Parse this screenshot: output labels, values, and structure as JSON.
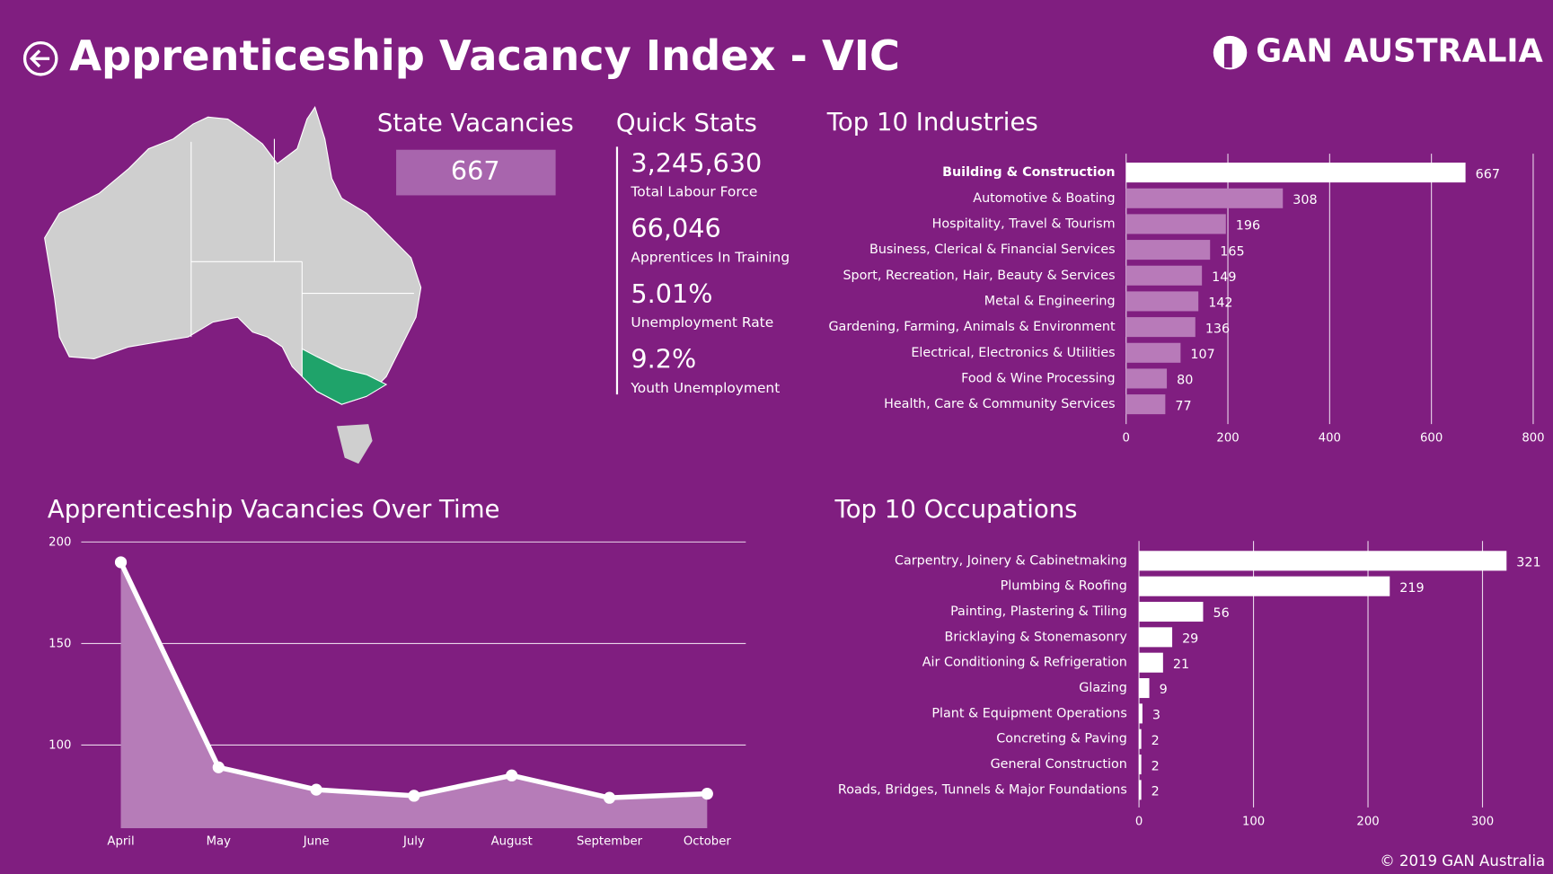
{
  "header": {
    "title": "Apprenticeship Vacancy Index - VIC",
    "logo": "GAN AUSTRALIA"
  },
  "state_vacancies": {
    "label": "State Vacancies",
    "value": 667
  },
  "quick_stats": {
    "title": "Quick Stats",
    "items": [
      {
        "value": "3,245,630",
        "label": "Total Labour Force"
      },
      {
        "value": "66,046",
        "label": "Apprentices In Training"
      },
      {
        "value": "5.01%",
        "label": "Unemployment Rate"
      },
      {
        "value": "9.2%",
        "label": "Youth Unemployment"
      }
    ]
  },
  "chart_data": [
    {
      "type": "bar",
      "orientation": "horizontal",
      "title": "Top 10 Industries",
      "categories": [
        "Building & Construction",
        "Automotive & Boating",
        "Hospitality, Travel & Tourism",
        "Business, Clerical & Financial Services",
        "Sport, Recreation, Hair, Beauty & Services",
        "Metal & Engineering",
        "Gardening, Farming, Animals & Environment",
        "Electrical, Electronics & Utilities",
        "Food & Wine Processing",
        "Health, Care & Community Services"
      ],
      "values": [
        667,
        308,
        196,
        165,
        149,
        142,
        136,
        107,
        80,
        77
      ],
      "colors": [
        "#ffffff",
        "#b87ab9",
        "#b87ab9",
        "#b87ab9",
        "#b87ab9",
        "#b87ab9",
        "#b87ab9",
        "#b87ab9",
        "#b87ab9",
        "#b87ab9"
      ],
      "xlim": [
        0,
        800
      ],
      "xticks": [
        0,
        200,
        400,
        600,
        800
      ],
      "grid": true
    },
    {
      "type": "bar",
      "orientation": "horizontal",
      "title": "Top 10 Occupations",
      "categories": [
        "Carpentry, Joinery & Cabinetmaking",
        "Plumbing & Roofing",
        "Painting, Plastering & Tiling",
        "Bricklaying & Stonemasonry",
        "Air Conditioning & Refrigeration",
        "Glazing",
        "Plant & Equipment Operations",
        "Concreting & Paving",
        "General Construction",
        "Roads, Bridges, Tunnels & Major Foundations"
      ],
      "values": [
        321,
        219,
        56,
        29,
        21,
        9,
        3,
        2,
        2,
        2
      ],
      "color": "#ffffff",
      "xlim": [
        0,
        330
      ],
      "xticks": [
        0,
        100,
        200,
        300
      ],
      "grid": true
    },
    {
      "type": "line",
      "title": "Apprenticeship Vacancies Over Time",
      "categories": [
        "April",
        "May",
        "June",
        "July",
        "August",
        "September",
        "October"
      ],
      "values": [
        190,
        89,
        78,
        75,
        85,
        74,
        76
      ],
      "color": "#ffffff",
      "area_color": "#b67cb8",
      "ylim": [
        59,
        200
      ],
      "yticks": [
        100,
        150,
        200
      ],
      "grid": true
    }
  ],
  "footer": "© 2019 GAN Australia"
}
